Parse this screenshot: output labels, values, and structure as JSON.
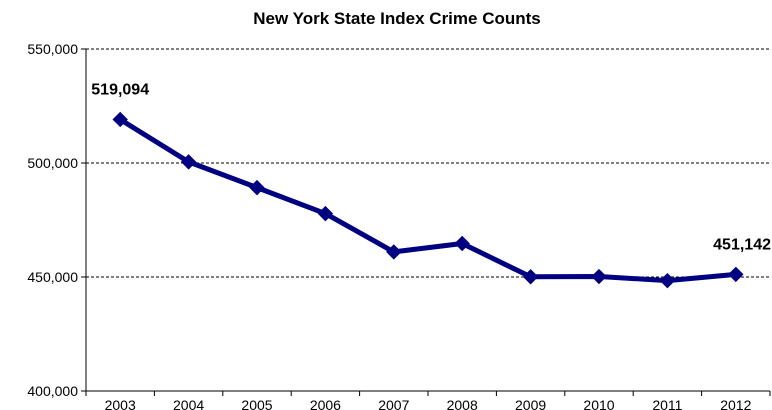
{
  "chart_data": {
    "type": "line",
    "title": "New York State Index Crime Counts",
    "xlabel": "",
    "ylabel": "",
    "categories": [
      "2003",
      "2004",
      "2005",
      "2006",
      "2007",
      "2008",
      "2009",
      "2010",
      "2011",
      "2012"
    ],
    "series": [
      {
        "values": [
          519094,
          500500,
          489200,
          477800,
          461000,
          464700,
          450100,
          450200,
          448400,
          451142
        ],
        "color": "#000080"
      }
    ],
    "ylim": [
      400000,
      550000
    ],
    "y_ticks": [
      "400,000",
      "450,000",
      "500,000",
      "550,000"
    ],
    "y_tick_values": [
      400000,
      450000,
      500000,
      550000
    ],
    "gridlines": "horizontal-dashed",
    "legend": "none",
    "marker": "diamond",
    "data_labels": [
      {
        "category": "2003",
        "text": "519,094"
      },
      {
        "category": "2012",
        "text": "451,142"
      }
    ]
  }
}
